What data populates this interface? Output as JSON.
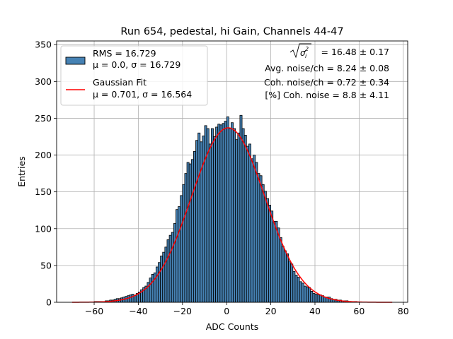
{
  "chart_data": {
    "type": "bar",
    "title": "Run 654, pedestal, hi Gain, Channels 44-47",
    "xlabel": "ADC Counts",
    "ylabel": "Entries",
    "xlim": [
      -77,
      82
    ],
    "ylim": [
      0,
      355
    ],
    "xticks": [
      -60,
      -40,
      -20,
      0,
      20,
      40,
      60,
      80
    ],
    "yticks": [
      0,
      50,
      100,
      150,
      200,
      250,
      300,
      350
    ],
    "xtick_labels": [
      "−60",
      "−40",
      "−20",
      "0",
      "20",
      "40",
      "60",
      "80"
    ],
    "ytick_labels": [
      "0",
      "50",
      "100",
      "150",
      "200",
      "250",
      "300",
      "350"
    ],
    "grid": true,
    "legend_position": "upper-left",
    "bar_color": "#4682b4",
    "fit_color": "#ff0000",
    "series": [
      {
        "name": "RMS = 16.729",
        "name_line2": "μ = 0.0, σ = 16.729",
        "kind": "histogram",
        "bin_width": 1,
        "x": [
          -69,
          -68,
          -67,
          -66,
          -65,
          -64,
          -63,
          -62,
          -61,
          -60,
          -59,
          -58,
          -57,
          -56,
          -55,
          -54,
          -53,
          -52,
          -51,
          -50,
          -49,
          -48,
          -47,
          -46,
          -45,
          -44,
          -43,
          -42,
          -41,
          -40,
          -39,
          -38,
          -37,
          -36,
          -35,
          -34,
          -33,
          -32,
          -31,
          -30,
          -29,
          -28,
          -27,
          -26,
          -25,
          -24,
          -23,
          -22,
          -21,
          -20,
          -19,
          -18,
          -17,
          -16,
          -15,
          -14,
          -13,
          -12,
          -11,
          -10,
          -9,
          -8,
          -7,
          -6,
          -5,
          -4,
          -3,
          -2,
          -1,
          0,
          1,
          2,
          3,
          4,
          5,
          6,
          7,
          8,
          9,
          10,
          11,
          12,
          13,
          14,
          15,
          16,
          17,
          18,
          19,
          20,
          21,
          22,
          23,
          24,
          25,
          26,
          27,
          28,
          29,
          30,
          31,
          32,
          33,
          34,
          35,
          36,
          37,
          38,
          39,
          40,
          41,
          42,
          43,
          44,
          45,
          46,
          47,
          48,
          49,
          50,
          51,
          52,
          53,
          54,
          55,
          56,
          57,
          58,
          59,
          60,
          61,
          62,
          63,
          64,
          65,
          66,
          67,
          68,
          69,
          70,
          71,
          72,
          73,
          74
        ],
        "values": [
          0,
          0,
          0,
          0,
          0,
          0,
          0,
          0,
          0,
          1,
          1,
          1,
          1,
          1,
          2,
          2,
          3,
          3,
          4,
          5,
          5,
          6,
          7,
          8,
          9,
          10,
          11,
          9,
          12,
          14,
          17,
          20,
          22,
          27,
          33,
          38,
          40,
          48,
          54,
          63,
          68,
          75,
          85,
          91,
          95,
          107,
          126,
          130,
          145,
          160,
          175,
          190,
          188,
          194,
          205,
          220,
          230,
          218,
          226,
          240,
          236,
          215,
          236,
          225,
          238,
          242,
          241,
          243,
          246,
          252,
          236,
          244,
          236,
          221,
          230,
          254,
          236,
          227,
          212,
          215,
          195,
          200,
          190,
          175,
          172,
          160,
          151,
          141,
          132,
          124,
          110,
          110,
          101,
          88,
          76,
          70,
          66,
          56,
          52,
          42,
          37,
          34,
          28,
          26,
          22,
          21,
          20,
          15,
          12,
          11,
          10,
          10,
          9,
          7,
          7,
          7,
          5,
          4,
          4,
          3,
          3,
          2,
          2,
          2,
          1,
          1,
          1,
          1,
          0,
          0,
          0,
          0,
          0,
          0,
          0,
          0,
          0,
          0,
          0,
          0,
          0,
          0,
          0,
          0
        ]
      },
      {
        "name": "Gaussian Fit",
        "name_line2": "μ = 0.701, σ = 16.564",
        "kind": "line",
        "mu": 0.701,
        "sigma": 16.564,
        "amplitude": 237,
        "x_range": [
          -70,
          75
        ]
      }
    ],
    "annotations": [
      {
        "prefix": "",
        "value": "= 16.48 ± 0.17",
        "has_sqrt_sigma": true
      },
      {
        "prefix": "Avg. noise/ch = 8.24 ± 0.08",
        "value": ""
      },
      {
        "prefix": "Coh. noise/ch = 0.72 ± 0.34",
        "value": ""
      },
      {
        "prefix": "[%] Coh. noise = 8.8 ± 4.11",
        "value": ""
      }
    ]
  }
}
